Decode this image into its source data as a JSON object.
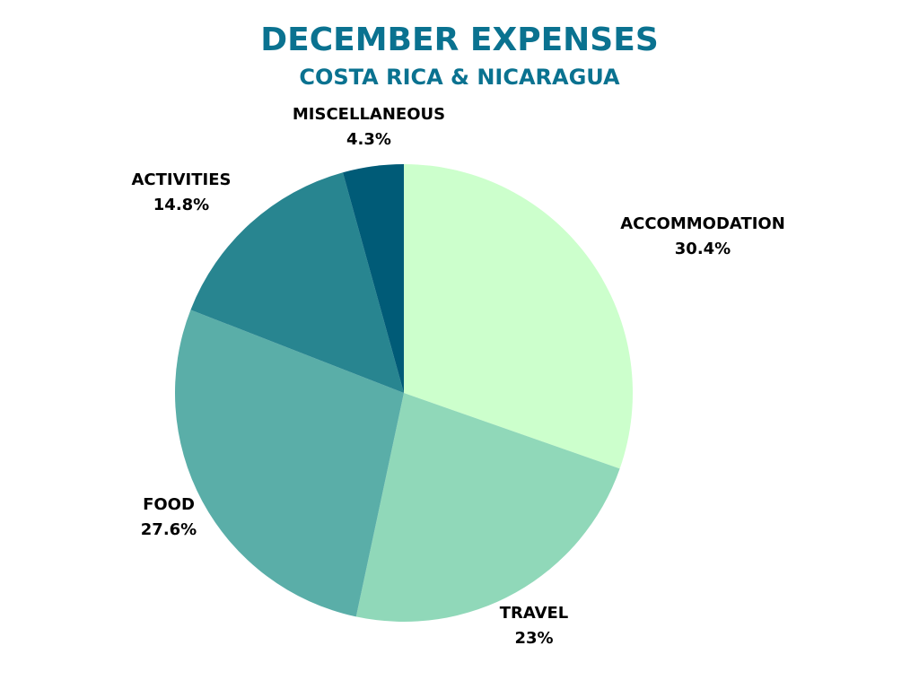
{
  "chart_data": {
    "type": "pie",
    "title": "DECEMBER EXPENSES",
    "subtitle": "COSTA RICA & NICARAGUA",
    "categories": [
      "ACCOMMODATION",
      "TRAVEL",
      "FOOD",
      "ACTIVITIES",
      "MISCELLANEOUS"
    ],
    "values": [
      30.4,
      23,
      27.6,
      14.8,
      4.3
    ],
    "value_labels": [
      "30.4%",
      "23%",
      "27.6%",
      "14.8%",
      "4.3%"
    ],
    "colors": [
      "#ccffcc",
      "#90d8b9",
      "#5aaea8",
      "#288590",
      "#005b77"
    ]
  }
}
